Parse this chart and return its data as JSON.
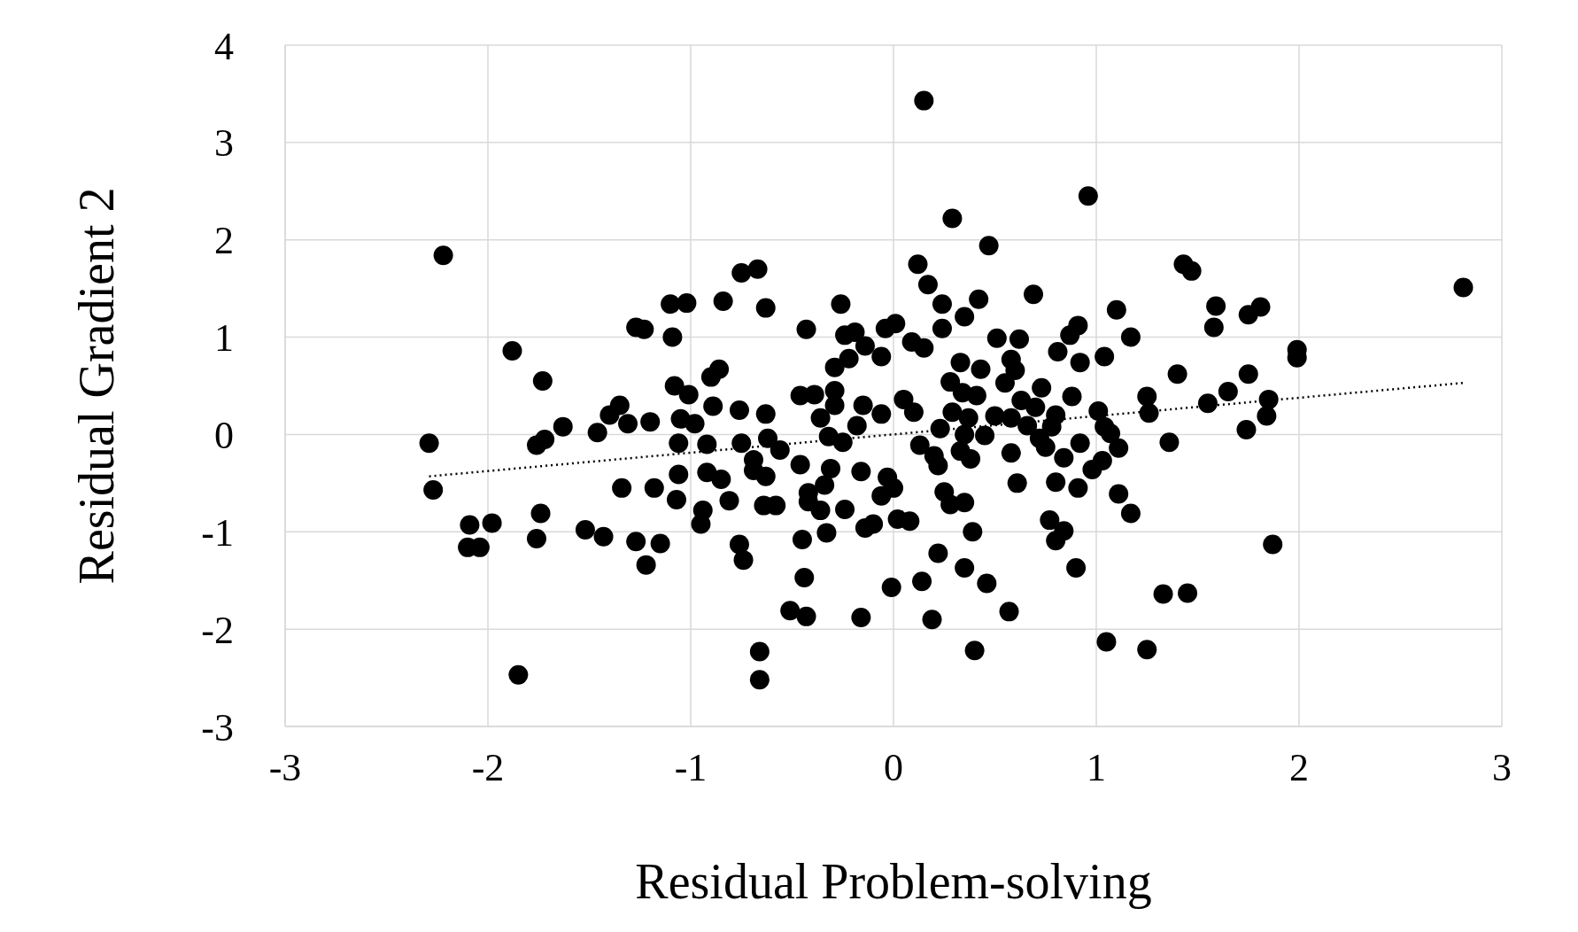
{
  "chart_data": {
    "type": "scatter",
    "xlabel": "Residual Problem-solving",
    "ylabel": "Residual Gradient 2",
    "xlim": [
      -3,
      3
    ],
    "xticks": [
      -3,
      -2,
      -1,
      0,
      1,
      2,
      3
    ],
    "ylim": [
      -3,
      4
    ],
    "yticks": [
      -3,
      -2,
      -1,
      0,
      1,
      2,
      3,
      4
    ],
    "grid": true,
    "marker": "circle",
    "series": [
      {
        "color": "#000000",
        "x": [
          0.15,
          0.96,
          0.29,
          -2.22,
          0.47,
          0.12,
          1.43,
          1.47,
          -0.67,
          -0.75,
          0.17,
          2.81,
          0.69,
          0.42,
          -0.84,
          0.24,
          -0.26,
          -1.1,
          -1.02,
          -0.63,
          1.1,
          1.59,
          1.81,
          1.75,
          0.35,
          -1.27,
          -1.23,
          -0.43,
          1.58,
          0.24,
          0.01,
          -0.04,
          0.91,
          -0.19,
          -0.24,
          1.17,
          -1.09,
          0.87,
          0.51,
          0.62,
          0.09,
          0.15,
          -0.14,
          0.81,
          -1.88,
          1.99,
          1.99,
          1.04,
          -0.06,
          -0.22,
          0.58,
          0.33,
          -0.86,
          -0.9,
          -0.29,
          0.92,
          0.6,
          0.43,
          1.75,
          1.4,
          -1.73,
          0.55,
          0.28,
          -1.08,
          1.65,
          -0.29,
          0.73,
          -1.01,
          0.34,
          -0.39,
          -0.46,
          1.25,
          0.88,
          0.41,
          0.05,
          1.85,
          1.55,
          0.63,
          -0.29,
          -1.35,
          -0.89,
          -0.15,
          0.7,
          -0.76,
          0.1,
          1.01,
          0.29,
          1.26,
          -1.4,
          -0.63,
          -0.06,
          1.84,
          0.5,
          0.8,
          -1.2,
          -1.05,
          -0.36,
          0.37,
          -1.31,
          0.58,
          -1.63,
          -0.98,
          -0.18,
          0.66,
          0.78,
          1.04,
          -1.46,
          0.23,
          1.74,
          1.07,
          0.35,
          -0.62,
          -0.32,
          0.45,
          0.72,
          -1.72,
          -2.29,
          -1.06,
          -0.92,
          -0.75,
          0.92,
          1.36,
          -1.76,
          0.13,
          -0.25,
          1.11,
          0.58,
          0.75,
          -0.56,
          0.33,
          0.84,
          0.2,
          -0.69,
          0.38,
          1.03,
          -0.46,
          0.22,
          -0.31,
          0.98,
          -0.69,
          -0.16,
          -0.92,
          -1.06,
          -0.63,
          -0.03,
          -0.85,
          0.8,
          0.61,
          -0.34,
          -1.34,
          -1.18,
          -2.27,
          0.91,
          0.0,
          0.25,
          -0.42,
          1.11,
          -0.06,
          -1.07,
          -0.81,
          0.28,
          -0.42,
          0.35,
          -0.58,
          -0.64,
          -0.24,
          -0.36,
          -0.94,
          -1.74,
          1.17,
          0.02,
          0.08,
          -0.95,
          -0.1,
          0.77,
          -1.98,
          -2.09,
          -0.14,
          -1.52,
          0.84,
          0.39,
          -0.33,
          -1.43,
          -1.76,
          -0.45,
          0.8,
          -1.27,
          -1.15,
          -0.76,
          1.87,
          -2.1,
          -2.04,
          0.22,
          -0.74,
          -1.22,
          0.35,
          0.9,
          -0.44,
          0.14,
          0.46,
          -0.01,
          1.33,
          1.45,
          -0.51,
          0.57,
          -0.43,
          -0.16,
          0.19,
          1.05,
          0.4,
          1.25,
          -0.66,
          -1.85,
          -0.66
        ],
        "values": [
          3.43,
          2.45,
          2.22,
          1.84,
          1.94,
          1.75,
          1.75,
          1.68,
          1.7,
          1.66,
          1.54,
          1.51,
          1.44,
          1.39,
          1.37,
          1.34,
          1.34,
          1.34,
          1.35,
          1.3,
          1.28,
          1.32,
          1.31,
          1.23,
          1.21,
          1.1,
          1.08,
          1.08,
          1.1,
          1.09,
          1.14,
          1.09,
          1.12,
          1.05,
          1.02,
          1.0,
          1.0,
          1.02,
          0.99,
          0.98,
          0.95,
          0.89,
          0.91,
          0.85,
          0.86,
          0.87,
          0.79,
          0.8,
          0.8,
          0.78,
          0.77,
          0.74,
          0.67,
          0.59,
          0.69,
          0.74,
          0.66,
          0.67,
          0.62,
          0.62,
          0.55,
          0.53,
          0.54,
          0.5,
          0.44,
          0.45,
          0.48,
          0.41,
          0.43,
          0.41,
          0.4,
          0.39,
          0.39,
          0.4,
          0.36,
          0.36,
          0.32,
          0.35,
          0.3,
          0.3,
          0.29,
          0.3,
          0.28,
          0.25,
          0.23,
          0.24,
          0.23,
          0.22,
          0.2,
          0.21,
          0.21,
          0.19,
          0.19,
          0.2,
          0.13,
          0.16,
          0.17,
          0.17,
          0.11,
          0.17,
          0.08,
          0.11,
          0.09,
          0.09,
          0.08,
          0.08,
          0.02,
          0.06,
          0.05,
          0.01,
          0.0,
          -0.04,
          -0.02,
          -0.01,
          -0.04,
          -0.05,
          -0.09,
          -0.09,
          -0.1,
          -0.09,
          -0.09,
          -0.08,
          -0.11,
          -0.11,
          -0.08,
          -0.14,
          -0.19,
          -0.13,
          -0.16,
          -0.17,
          -0.24,
          -0.22,
          -0.26,
          -0.25,
          -0.27,
          -0.31,
          -0.32,
          -0.35,
          -0.36,
          -0.37,
          -0.38,
          -0.39,
          -0.41,
          -0.43,
          -0.44,
          -0.46,
          -0.49,
          -0.5,
          -0.52,
          -0.55,
          -0.55,
          -0.57,
          -0.55,
          -0.55,
          -0.59,
          -0.6,
          -0.61,
          -0.63,
          -0.67,
          -0.68,
          -0.72,
          -0.69,
          -0.7,
          -0.73,
          -0.73,
          -0.77,
          -0.78,
          -0.78,
          -0.81,
          -0.81,
          -0.87,
          -0.89,
          -0.92,
          -0.92,
          -0.88,
          -0.91,
          -0.93,
          -0.96,
          -0.98,
          -0.99,
          -1.0,
          -1.01,
          -1.05,
          -1.07,
          -1.08,
          -1.09,
          -1.1,
          -1.12,
          -1.13,
          -1.13,
          -1.16,
          -1.16,
          -1.22,
          -1.29,
          -1.34,
          -1.37,
          -1.37,
          -1.47,
          -1.51,
          -1.53,
          -1.57,
          -1.64,
          -1.63,
          -1.81,
          -1.82,
          -1.87,
          -1.88,
          -1.9,
          -2.13,
          -2.22,
          -2.21,
          -2.23,
          -2.47,
          -2.52
        ]
      },
      {
        "type": "line",
        "color": "#000000",
        "line_style": "dotted",
        "marker": "none",
        "x": [
          -2.29,
          2.81
        ],
        "values": [
          -0.43,
          0.53
        ]
      }
    ]
  }
}
